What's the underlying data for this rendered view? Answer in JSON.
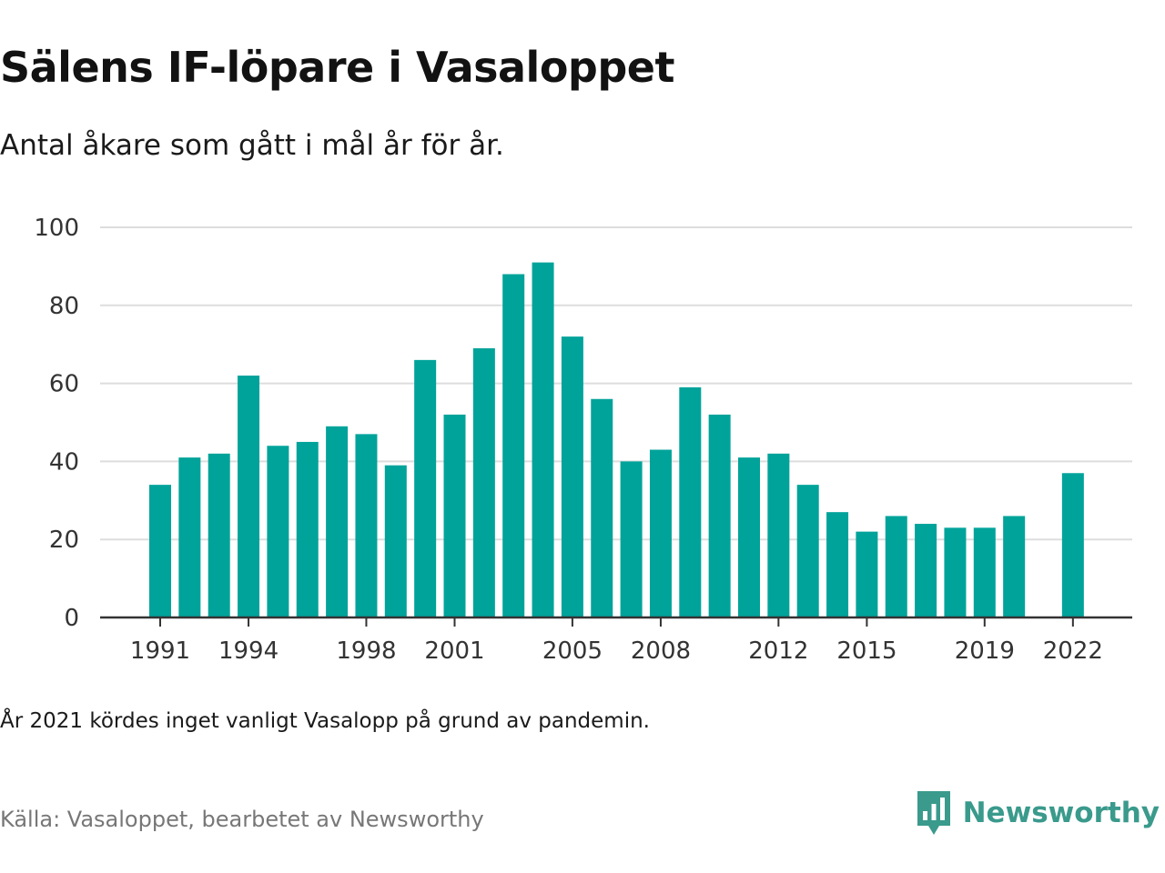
{
  "header": {
    "title": "Sälens IF-löpare i Vasaloppet",
    "subtitle": "Antal åkare som gått i mål år för år."
  },
  "footer": {
    "note": "År 2021 kördes inget vanligt Vasalopp på grund av pandemin.",
    "source": "Källa: Vasaloppet, bearbetet av Newsworthy",
    "brand": "Newsworthy"
  },
  "colors": {
    "bar": "#00a39a",
    "grid": "#dddddd",
    "axis": "#333333",
    "brand": "#3a9a8c"
  },
  "icons": {
    "brand_logo": "newsworthy-logo-icon"
  },
  "chart_data": {
    "type": "bar",
    "categories": [
      "1991",
      "1992",
      "1993",
      "1994",
      "1995",
      "1996",
      "1997",
      "1998",
      "1999",
      "2000",
      "2001",
      "2002",
      "2003",
      "2004",
      "2005",
      "2006",
      "2007",
      "2008",
      "2009",
      "2010",
      "2011",
      "2012",
      "2013",
      "2014",
      "2015",
      "2016",
      "2017",
      "2018",
      "2019",
      "2020",
      "2021",
      "2022"
    ],
    "values": [
      34,
      41,
      42,
      62,
      44,
      45,
      49,
      47,
      39,
      66,
      52,
      69,
      88,
      91,
      72,
      56,
      40,
      43,
      59,
      52,
      41,
      42,
      34,
      27,
      22,
      26,
      24,
      23,
      23,
      26,
      null,
      37
    ],
    "x_tick_labels": [
      "1991",
      "1994",
      "1998",
      "2001",
      "2005",
      "2008",
      "2012",
      "2015",
      "2019",
      "2022"
    ],
    "y_ticks": [
      0,
      20,
      40,
      60,
      80,
      100
    ],
    "ylim": [
      0,
      100
    ],
    "grid": true,
    "legend": "none"
  }
}
